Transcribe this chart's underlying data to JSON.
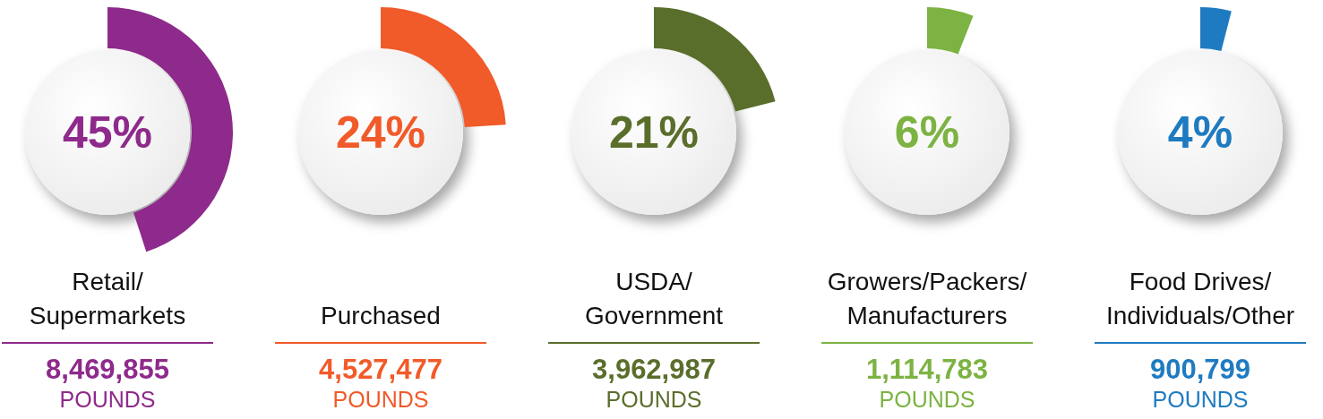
{
  "chart_data": {
    "type": "other",
    "categories": [
      "Retail/\nSupermarkets",
      "Purchased",
      "USDA/\nGovernment",
      "Growers/Packers/\nManufacturers",
      "Food Drives/\nIndividuals/Other"
    ],
    "values": [
      45,
      24,
      21,
      6,
      4
    ],
    "value_labels": [
      "45%",
      "24%",
      "21%",
      "6%",
      "4%"
    ],
    "colors": [
      "#8e2a8b",
      "#f15a29",
      "#5a6e2c",
      "#7cb342",
      "#1f7bc1"
    ],
    "annotations": [
      "8,469,855\nPOUNDS",
      "4,527,477\nPOUNDS",
      "3,962,987\nPOUNDS",
      "1,114,783\nPOUNDS",
      "900,799\nPOUNDS"
    ]
  }
}
